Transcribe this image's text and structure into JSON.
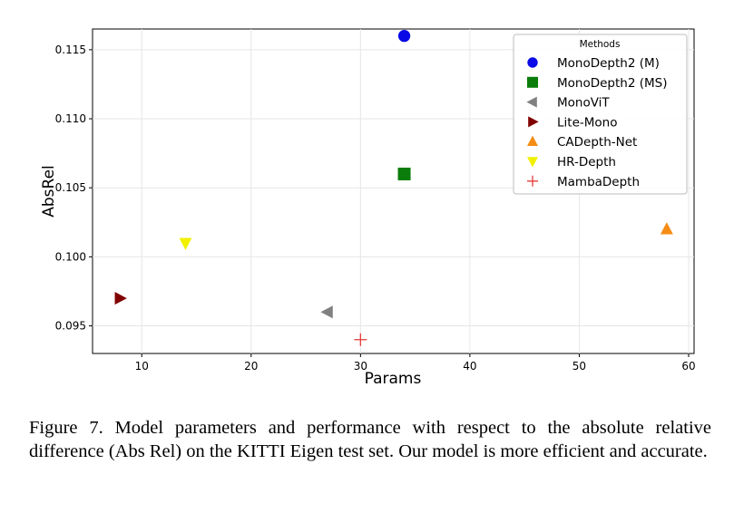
{
  "chart_data": {
    "type": "scatter",
    "xlabel": "Params",
    "ylabel": "AbsRel",
    "xlim": [
      5.5,
      60.5
    ],
    "ylim": [
      0.093,
      0.1165
    ],
    "x_ticks": [
      10,
      20,
      30,
      40,
      50,
      60
    ],
    "y_ticks": [
      0.095,
      0.1,
      0.105,
      0.11,
      0.115
    ],
    "y_tick_labels": [
      "0.095",
      "0.100",
      "0.105",
      "0.110",
      "0.115"
    ],
    "grid": true,
    "legend_title": "Methods",
    "legend_position": "top-right",
    "series": [
      {
        "name": "MonoDepth2 (M)",
        "x": 34,
        "y": 0.116,
        "marker": "circle",
        "color": "#0a0ae6"
      },
      {
        "name": "MonoDepth2 (MS)",
        "x": 34,
        "y": 0.106,
        "marker": "square",
        "color": "#0a7d0a"
      },
      {
        "name": "MonoViT",
        "x": 27,
        "y": 0.096,
        "marker": "triangle-left",
        "color": "#808080"
      },
      {
        "name": "Lite-Mono",
        "x": 8,
        "y": 0.097,
        "marker": "triangle-right",
        "color": "#800000"
      },
      {
        "name": "CADepth-Net",
        "x": 58,
        "y": 0.102,
        "marker": "triangle-up",
        "color": "#f58c14"
      },
      {
        "name": "HR-Depth",
        "x": 14,
        "y": 0.101,
        "marker": "triangle-down",
        "color": "#f0f000"
      },
      {
        "name": "MambaDepth",
        "x": 30,
        "y": 0.094,
        "marker": "plus",
        "color": "#e83a3a"
      }
    ]
  },
  "caption": "Figure 7.  Model parameters and performance with respect to the absolute relative difference (Abs Rel) on the KITTI Eigen test set. Our model is more efficient and accurate."
}
